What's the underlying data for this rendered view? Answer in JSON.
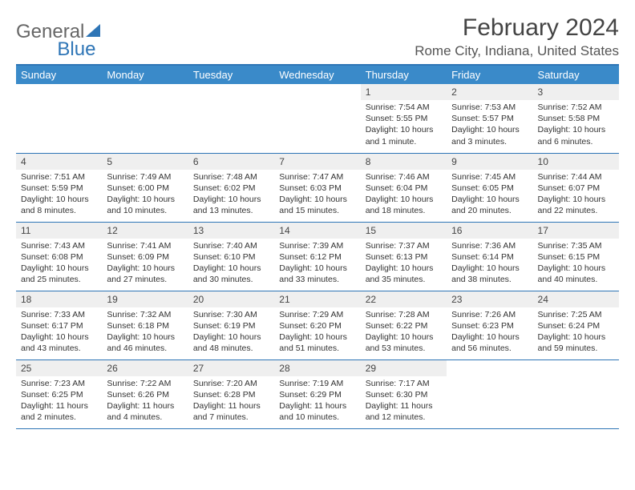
{
  "brand": {
    "part1": "General",
    "part2": "Blue",
    "logo_color": "#2e75b6"
  },
  "title": "February 2024",
  "location": "Rome City, Indiana, United States",
  "colors": {
    "header_bg": "#3a8ac9",
    "rule": "#2e75b6",
    "daynum_bg": "#efefef"
  },
  "weekdays": [
    "Sunday",
    "Monday",
    "Tuesday",
    "Wednesday",
    "Thursday",
    "Friday",
    "Saturday"
  ],
  "first_weekday_index": 4,
  "days": [
    {
      "n": 1,
      "sunrise": "7:54 AM",
      "sunset": "5:55 PM",
      "daylight": "10 hours and 1 minute."
    },
    {
      "n": 2,
      "sunrise": "7:53 AM",
      "sunset": "5:57 PM",
      "daylight": "10 hours and 3 minutes."
    },
    {
      "n": 3,
      "sunrise": "7:52 AM",
      "sunset": "5:58 PM",
      "daylight": "10 hours and 6 minutes."
    },
    {
      "n": 4,
      "sunrise": "7:51 AM",
      "sunset": "5:59 PM",
      "daylight": "10 hours and 8 minutes."
    },
    {
      "n": 5,
      "sunrise": "7:49 AM",
      "sunset": "6:00 PM",
      "daylight": "10 hours and 10 minutes."
    },
    {
      "n": 6,
      "sunrise": "7:48 AM",
      "sunset": "6:02 PM",
      "daylight": "10 hours and 13 minutes."
    },
    {
      "n": 7,
      "sunrise": "7:47 AM",
      "sunset": "6:03 PM",
      "daylight": "10 hours and 15 minutes."
    },
    {
      "n": 8,
      "sunrise": "7:46 AM",
      "sunset": "6:04 PM",
      "daylight": "10 hours and 18 minutes."
    },
    {
      "n": 9,
      "sunrise": "7:45 AM",
      "sunset": "6:05 PM",
      "daylight": "10 hours and 20 minutes."
    },
    {
      "n": 10,
      "sunrise": "7:44 AM",
      "sunset": "6:07 PM",
      "daylight": "10 hours and 22 minutes."
    },
    {
      "n": 11,
      "sunrise": "7:43 AM",
      "sunset": "6:08 PM",
      "daylight": "10 hours and 25 minutes."
    },
    {
      "n": 12,
      "sunrise": "7:41 AM",
      "sunset": "6:09 PM",
      "daylight": "10 hours and 27 minutes."
    },
    {
      "n": 13,
      "sunrise": "7:40 AM",
      "sunset": "6:10 PM",
      "daylight": "10 hours and 30 minutes."
    },
    {
      "n": 14,
      "sunrise": "7:39 AM",
      "sunset": "6:12 PM",
      "daylight": "10 hours and 33 minutes."
    },
    {
      "n": 15,
      "sunrise": "7:37 AM",
      "sunset": "6:13 PM",
      "daylight": "10 hours and 35 minutes."
    },
    {
      "n": 16,
      "sunrise": "7:36 AM",
      "sunset": "6:14 PM",
      "daylight": "10 hours and 38 minutes."
    },
    {
      "n": 17,
      "sunrise": "7:35 AM",
      "sunset": "6:15 PM",
      "daylight": "10 hours and 40 minutes."
    },
    {
      "n": 18,
      "sunrise": "7:33 AM",
      "sunset": "6:17 PM",
      "daylight": "10 hours and 43 minutes."
    },
    {
      "n": 19,
      "sunrise": "7:32 AM",
      "sunset": "6:18 PM",
      "daylight": "10 hours and 46 minutes."
    },
    {
      "n": 20,
      "sunrise": "7:30 AM",
      "sunset": "6:19 PM",
      "daylight": "10 hours and 48 minutes."
    },
    {
      "n": 21,
      "sunrise": "7:29 AM",
      "sunset": "6:20 PM",
      "daylight": "10 hours and 51 minutes."
    },
    {
      "n": 22,
      "sunrise": "7:28 AM",
      "sunset": "6:22 PM",
      "daylight": "10 hours and 53 minutes."
    },
    {
      "n": 23,
      "sunrise": "7:26 AM",
      "sunset": "6:23 PM",
      "daylight": "10 hours and 56 minutes."
    },
    {
      "n": 24,
      "sunrise": "7:25 AM",
      "sunset": "6:24 PM",
      "daylight": "10 hours and 59 minutes."
    },
    {
      "n": 25,
      "sunrise": "7:23 AM",
      "sunset": "6:25 PM",
      "daylight": "11 hours and 2 minutes."
    },
    {
      "n": 26,
      "sunrise": "7:22 AM",
      "sunset": "6:26 PM",
      "daylight": "11 hours and 4 minutes."
    },
    {
      "n": 27,
      "sunrise": "7:20 AM",
      "sunset": "6:28 PM",
      "daylight": "11 hours and 7 minutes."
    },
    {
      "n": 28,
      "sunrise": "7:19 AM",
      "sunset": "6:29 PM",
      "daylight": "11 hours and 10 minutes."
    },
    {
      "n": 29,
      "sunrise": "7:17 AM",
      "sunset": "6:30 PM",
      "daylight": "11 hours and 12 minutes."
    }
  ],
  "labels": {
    "sunrise": "Sunrise:",
    "sunset": "Sunset:",
    "daylight": "Daylight:"
  }
}
